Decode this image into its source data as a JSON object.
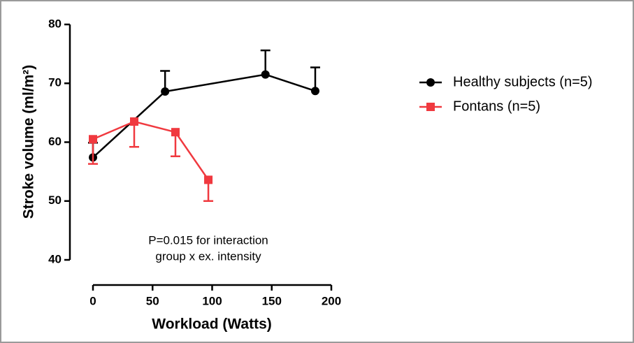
{
  "chart_data": {
    "type": "line",
    "x_label": "Workload (Watts)",
    "y_label": "Stroke volume (ml/m²)",
    "annotations": [
      "P=0.015 for interaction",
      "group x ex. intensity"
    ],
    "xlim": [
      0,
      200
    ],
    "xticks": [
      0,
      50,
      100,
      150,
      200
    ],
    "ylim": [
      40,
      80
    ],
    "yticks": [
      40,
      50,
      60,
      70,
      80
    ],
    "legend": "right",
    "series": [
      {
        "name": "Healthy subjects (n=5)",
        "color": "#000000",
        "marker": "circle",
        "error_direction": "up",
        "x": [
          0,
          60.5,
          144.7,
          186.5
        ],
        "values": [
          57.4,
          68.6,
          71.5,
          68.7
        ],
        "errors": [
          2.5,
          3.5,
          4.1,
          4.0
        ]
      },
      {
        "name": "Fontans (n=5)",
        "color": "#f0393f",
        "marker": "square",
        "error_direction": "down",
        "x": [
          0,
          34.6,
          69.2,
          96.8
        ],
        "values": [
          60.5,
          63.5,
          61.7,
          53.6
        ],
        "errors": [
          4.2,
          4.3,
          4.1,
          3.6
        ]
      }
    ]
  }
}
